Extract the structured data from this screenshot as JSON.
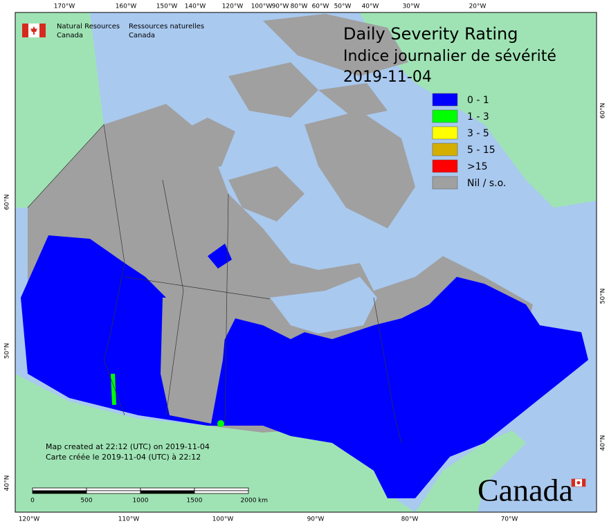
{
  "header": {
    "nrcan_en": [
      "Natural Resources",
      "Canada"
    ],
    "nrcan_fr": [
      "Ressources naturelles",
      "Canada"
    ]
  },
  "title": [
    "Daily Severity Rating",
    "Indice journalier de sévérité",
    "2019-11-04"
  ],
  "legend": [
    {
      "label": "0 - 1",
      "color": "#0000ff"
    },
    {
      "label": "1 - 3",
      "color": "#00ff00"
    },
    {
      "label": "3 - 5",
      "color": "#ffff00"
    },
    {
      "label": "5 - 15",
      "color": "#d4af00"
    },
    {
      "label": ">15",
      "color": "#ff0000"
    },
    {
      "label": "Nil / s.o.",
      "color": "#a0a0a0"
    }
  ],
  "graticule": {
    "top": [
      "170°W",
      "160°W",
      "150°W",
      "140°W",
      "120°W",
      "100°W",
      "90°W",
      "80°W",
      "60°W",
      "50°W",
      "40°W",
      "30°W",
      "20°W"
    ],
    "bottom": [
      "120°W",
      "110°W",
      "100°W",
      "90°W",
      "80°W",
      "70°W"
    ],
    "left": [
      "60°N",
      "50°N",
      "40°N"
    ],
    "right": [
      "60°N",
      "50°N",
      "40°N"
    ]
  },
  "note": [
    "Map created at 22:12 (UTC) on 2019-11-04",
    "Carte créée le 2019-11-04 (UTC) à 22:12"
  ],
  "scale": {
    "ticks": [
      "0",
      "500",
      "1000",
      "1500",
      "2000"
    ],
    "unit": "km"
  },
  "wordmark": "Canada"
}
